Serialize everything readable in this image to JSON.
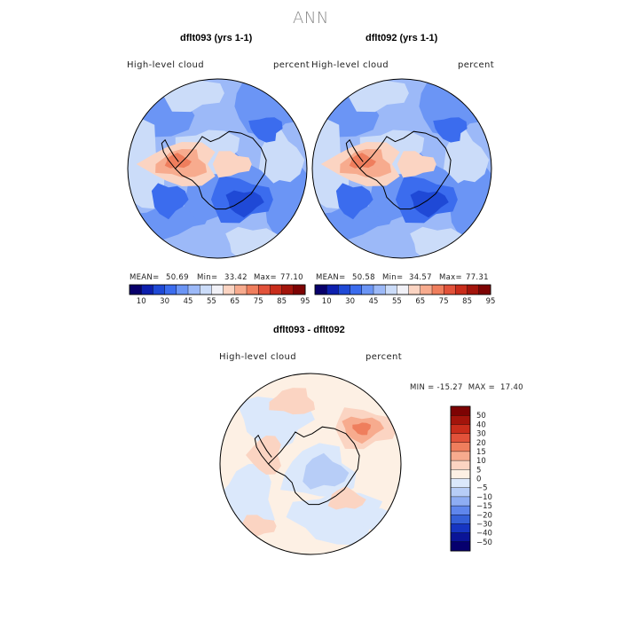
{
  "page": {
    "title": "ANN"
  },
  "panels": [
    {
      "title": "dflt093 (yrs 1-1)",
      "left_label": "High-level cloud",
      "right_label": "percent",
      "stats": {
        "mean_label": "MEAN=",
        "mean": "50.69",
        "min_label": "Min=",
        "min": "33.42",
        "max_label": "Max=",
        "max": "77.10"
      }
    },
    {
      "title": "dflt092 (yrs 1-1)",
      "left_label": "High-level cloud",
      "right_label": "percent",
      "stats": {
        "mean_label": "MEAN=",
        "mean": "50.58",
        "min_label": "Min=",
        "min": "34.57",
        "max_label": "Max=",
        "max": "77.31"
      }
    }
  ],
  "diff_panel": {
    "title": "dflt093 - dflt092",
    "left_label": "High-level cloud",
    "right_label": "percent",
    "minmax": "MIN = -15.27  MAX =  17.40"
  },
  "chart_data": [
    {
      "type": "heatmap",
      "title": "dflt093 (yrs 1-1)",
      "variable": "High-level cloud",
      "units": "percent",
      "projection": "south polar stereographic",
      "mean": 50.69,
      "min": 33.42,
      "max": 77.1,
      "colorbar_ticks": [
        "10",
        "30",
        "45",
        "55",
        "65",
        "75",
        "85",
        "95"
      ],
      "contour_levels": [
        10,
        20,
        30,
        40,
        45,
        50,
        55,
        60,
        65,
        70,
        75,
        80,
        85,
        90,
        95
      ]
    },
    {
      "type": "heatmap",
      "title": "dflt092 (yrs 1-1)",
      "variable": "High-level cloud",
      "units": "percent",
      "projection": "south polar stereographic",
      "mean": 50.58,
      "min": 34.57,
      "max": 77.31,
      "colorbar_ticks": [
        "10",
        "30",
        "45",
        "55",
        "65",
        "75",
        "85",
        "95"
      ],
      "contour_levels": [
        10,
        20,
        30,
        40,
        45,
        50,
        55,
        60,
        65,
        70,
        75,
        80,
        85,
        90,
        95
      ]
    },
    {
      "type": "heatmap",
      "title": "dflt093 - dflt092",
      "variable": "High-level cloud",
      "units": "percent",
      "projection": "south polar stereographic",
      "min": -15.27,
      "max": 17.4,
      "colorbar_ticks": [
        "50",
        "40",
        "30",
        "20",
        "15",
        "10",
        "5",
        "0",
        "−5",
        "−10",
        "−15",
        "−20",
        "−30",
        "−40",
        "−50"
      ]
    }
  ],
  "colors": {
    "seq": [
      "#08006b",
      "#0d1fae",
      "#1f49d6",
      "#3b6cee",
      "#6b95f5",
      "#9cb9f8",
      "#cbdcf9",
      "#f1f1f7",
      "#fbd4c2",
      "#f7ab8e",
      "#ef7e5d",
      "#e2523a",
      "#c92d1b",
      "#a3140b",
      "#7d0303"
    ],
    "diff": [
      "#7d0303",
      "#a3140b",
      "#c92d1b",
      "#e2523a",
      "#ef7e5d",
      "#f7ab8e",
      "#fbd4c2",
      "#fdf0e4",
      "#dbe8fb",
      "#b7cdf7",
      "#8eadf3",
      "#5f86ec",
      "#3560d8",
      "#1635c2",
      "#0a1497",
      "#06006e"
    ]
  }
}
